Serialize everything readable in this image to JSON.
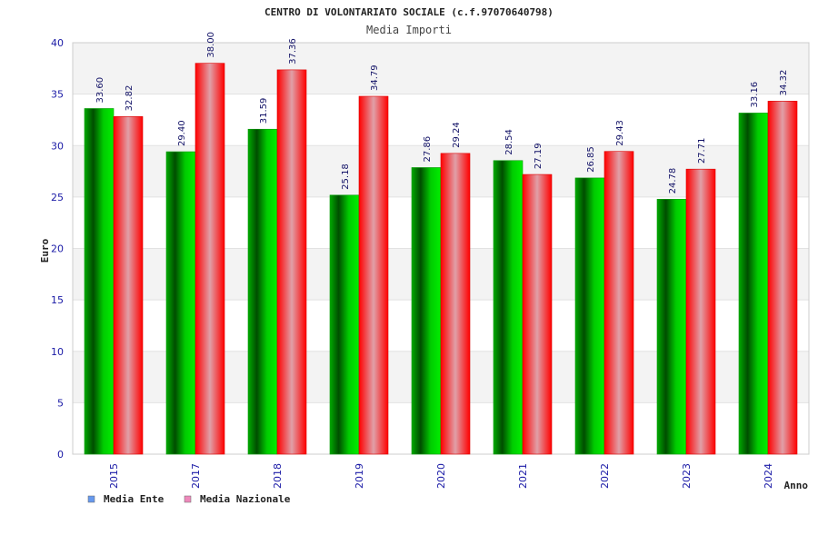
{
  "chart_data": {
    "type": "bar",
    "title": "CENTRO DI VOLONTARIATO SOCIALE (c.f.97070640798)",
    "subtitle": "Media Importi",
    "xlabel": "Anno",
    "ylabel": "Euro",
    "ylim": [
      0,
      40
    ],
    "yticks": [
      0,
      5,
      10,
      15,
      20,
      25,
      30,
      35,
      40
    ],
    "grid": true,
    "legend_position": "bottom-left",
    "categories": [
      "2015",
      "2017",
      "2018",
      "2019",
      "2020",
      "2021",
      "2022",
      "2023",
      "2024"
    ],
    "series": [
      {
        "name": "Media Ente",
        "legend_color": "#6699ee",
        "bar_color": "#00bb00",
        "values": [
          33.6,
          29.4,
          31.59,
          25.18,
          27.86,
          28.54,
          26.85,
          24.78,
          33.16
        ],
        "labels": [
          "33.60",
          "29.40",
          "31.59",
          "25.18",
          "27.86",
          "28.54",
          "26.85",
          "24.78",
          "33.16"
        ]
      },
      {
        "name": "Media Nazionale",
        "legend_color": "#ee88bb",
        "bar_color": "#ff1111",
        "values": [
          32.82,
          38.0,
          37.36,
          34.79,
          29.24,
          27.19,
          29.43,
          27.71,
          34.32
        ],
        "labels": [
          "32.82",
          "38.00",
          "37.36",
          "34.79",
          "29.24",
          "27.19",
          "29.43",
          "27.71",
          "34.32"
        ]
      }
    ]
  }
}
